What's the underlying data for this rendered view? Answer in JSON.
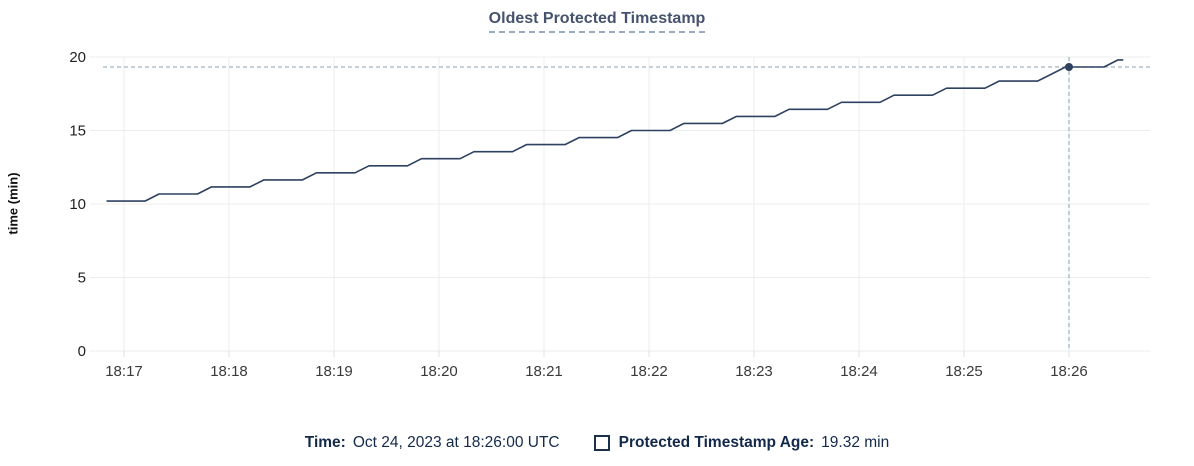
{
  "page": {
    "title": "Oldest Protected Timestamp"
  },
  "footer": {
    "time_label": "Time:",
    "time_value": "Oct 24, 2023 at 18:26:00 UTC",
    "series_label": "Protected Timestamp Age:",
    "series_value": "19.32 min",
    "legend_box_icon": "checkbox-outline-icon"
  },
  "chart_data": {
    "type": "line",
    "title": "Oldest Protected Timestamp",
    "xlabel": "",
    "ylabel": "time (min)",
    "x_tick_labels": [
      "18:17",
      "18:18",
      "18:19",
      "18:20",
      "18:21",
      "18:22",
      "18:23",
      "18:24",
      "18:25",
      "18:26"
    ],
    "y_ticks": [
      0,
      5,
      10,
      15,
      20
    ],
    "ylim": [
      0,
      20
    ],
    "grid": true,
    "legend_position": "bottom",
    "series": [
      {
        "name": "Protected Timestamp Age",
        "units": "min",
        "points_x_minutes_from_1817": true,
        "points": [
          [
            -0.167,
            10.2
          ],
          [
            0.2,
            10.2
          ],
          [
            0.333,
            10.68
          ],
          [
            0.7,
            10.68
          ],
          [
            0.833,
            11.16
          ],
          [
            1.2,
            11.16
          ],
          [
            1.333,
            11.64
          ],
          [
            1.7,
            11.64
          ],
          [
            1.833,
            12.12
          ],
          [
            2.2,
            12.12
          ],
          [
            2.333,
            12.6
          ],
          [
            2.7,
            12.6
          ],
          [
            2.833,
            13.08
          ],
          [
            3.2,
            13.08
          ],
          [
            3.333,
            13.56
          ],
          [
            3.7,
            13.56
          ],
          [
            3.833,
            14.04
          ],
          [
            4.2,
            14.04
          ],
          [
            4.333,
            14.52
          ],
          [
            4.7,
            14.52
          ],
          [
            4.833,
            15.0
          ],
          [
            5.2,
            15.0
          ],
          [
            5.333,
            15.48
          ],
          [
            5.7,
            15.48
          ],
          [
            5.833,
            15.96
          ],
          [
            6.2,
            15.96
          ],
          [
            6.333,
            16.44
          ],
          [
            6.7,
            16.44
          ],
          [
            6.833,
            16.92
          ],
          [
            7.2,
            16.92
          ],
          [
            7.333,
            17.4
          ],
          [
            7.7,
            17.4
          ],
          [
            7.833,
            17.88
          ],
          [
            8.2,
            17.88
          ],
          [
            8.333,
            18.36
          ],
          [
            8.7,
            18.36
          ],
          [
            8.833,
            18.84
          ],
          [
            8.967,
            19.32
          ],
          [
            9.333,
            19.32
          ],
          [
            9.467,
            19.8
          ],
          [
            9.517,
            19.8
          ]
        ]
      }
    ],
    "crosshair": {
      "time_label": "18:26",
      "x_minutes_from_1817": 9.0,
      "value": 19.32
    },
    "colors": {
      "line": "#2e4160",
      "point": "#2e4160",
      "crosshair": "#a3b5c2",
      "grid": "#ececec",
      "tick_stub": "#e0e0e0",
      "x_tick_text": "#3a3a3a",
      "y_tick_text": "#222222",
      "title_text": "#46536e",
      "footer_text": "#13294b"
    }
  }
}
